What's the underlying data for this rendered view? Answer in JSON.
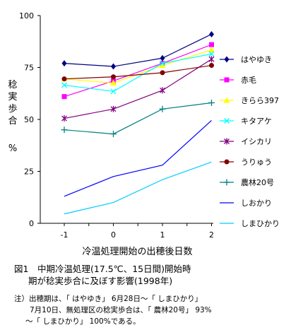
{
  "chart_data": {
    "type": "line",
    "x": [
      -1,
      0,
      1,
      2
    ],
    "categories": [
      "-1",
      "0",
      "1",
      "2"
    ],
    "xlabel": "冷温処理開始の出穂後日数",
    "ylabel": "稔実歩合",
    "yunit": "%",
    "ylim": [
      0,
      100
    ],
    "xlim": [
      -2,
      2
    ],
    "yticks": [
      "0",
      "25",
      "50",
      "75",
      "100"
    ],
    "grid": false,
    "legend_position": "right",
    "series": [
      {
        "name": "はやゆき",
        "values": [
          77,
          75.5,
          79.5,
          91
        ],
        "color": "#000080",
        "marker": "diamond"
      },
      {
        "name": "赤毛",
        "values": [
          61,
          68.5,
          77,
          86
        ],
        "color": "#ff00ff",
        "marker": "square"
      },
      {
        "name": "きらら397",
        "values": [
          69.5,
          67.5,
          76,
          83.5
        ],
        "color": "#ffff00",
        "marker": "triangle"
      },
      {
        "name": "キタアケ",
        "values": [
          66.5,
          63.5,
          77,
          81.5
        ],
        "color": "#00ffff",
        "marker": "x"
      },
      {
        "name": "イシカリ",
        "values": [
          50.5,
          55,
          64,
          79
        ],
        "color": "#800080",
        "marker": "star"
      },
      {
        "name": "うりゅう",
        "values": [
          69.5,
          70.5,
          72.5,
          76
        ],
        "color": "#800000",
        "marker": "circle"
      },
      {
        "name": "農林20号",
        "values": [
          45,
          43,
          55,
          58
        ],
        "color": "#008080",
        "marker": "plus"
      },
      {
        "name": "しおかり",
        "values": [
          13,
          22.5,
          28,
          49.5
        ],
        "color": "#0000ff",
        "marker": "none"
      },
      {
        "name": "しまひかり",
        "values": [
          4.5,
          10,
          21,
          29.5
        ],
        "color": "#00ccff",
        "marker": "none"
      }
    ]
  },
  "caption": {
    "line1": "図1　中期冷温処理(17.5℃、15日間)開始時",
    "line2": "期が稔実歩合に及ぼす影響(1998年)"
  },
  "note": {
    "line1": "注）出穂期は、「 はやゆき」 6月28日～「 しまひかり」",
    "line2": "7月10日、無処理区の稔実歩合は、「 農林20号」 93%",
    "line3": "～「 しまひかり」 100%である。"
  }
}
